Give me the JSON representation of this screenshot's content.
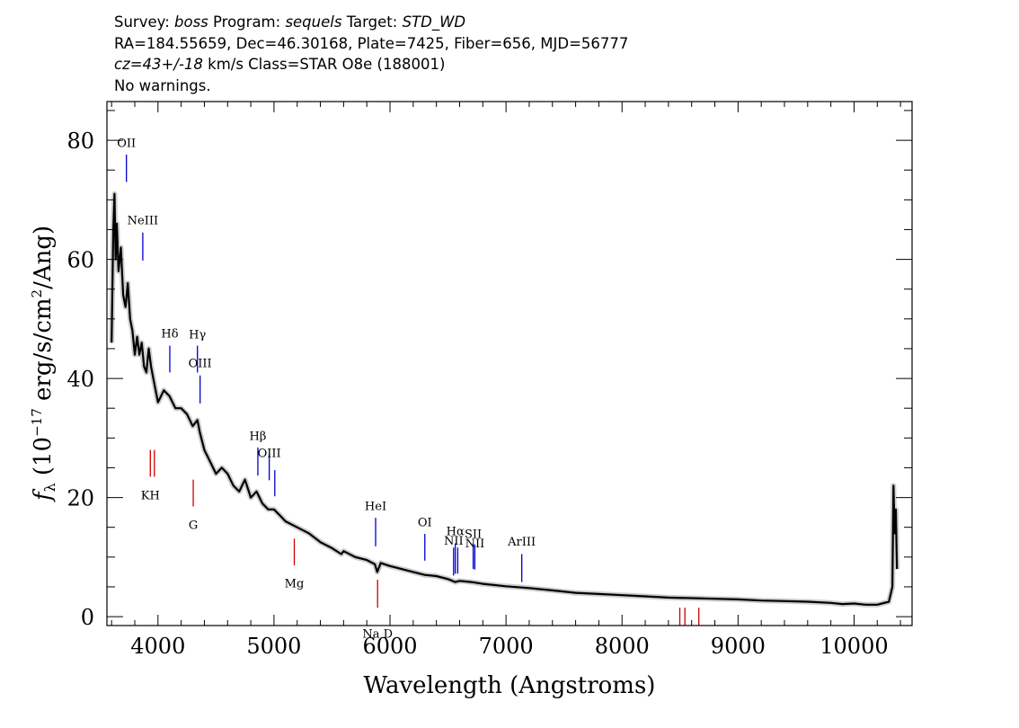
{
  "header": {
    "line1": {
      "survey_label": "Survey: ",
      "survey": "boss",
      "program_label": " Program: ",
      "program": "sequels",
      "target_label": " Target: ",
      "target": "STD_WD"
    },
    "line2": "RA=184.55659, Dec=46.30168, Plate=7425, Fiber=656, MJD=56777",
    "line3": {
      "cz": "cz=43+/-18",
      "rest": " km/s Class=STAR O8e (188001)"
    },
    "line4": "No warnings."
  },
  "chart_data": {
    "type": "line",
    "xlabel": "Wavelength (Angstroms)",
    "ylabel_parts": {
      "f": "f",
      "lambda": "λ",
      "open": " (10",
      "exp": "−17",
      "mid": " erg/s/cm",
      "sq": "2",
      "close": "/Ang)"
    },
    "xlim": [
      3560,
      10500
    ],
    "ylim": [
      -1.5,
      86.5
    ],
    "x_ticks": [
      4000,
      5000,
      6000,
      7000,
      8000,
      9000,
      10000
    ],
    "x_tick_labels": [
      "4000",
      "5000",
      "6000",
      "7000",
      "8000",
      "9000",
      "10000"
    ],
    "y_ticks": [
      0,
      20,
      40,
      60,
      80
    ],
    "y_tick_labels": [
      "0",
      "20",
      "40",
      "60",
      "80"
    ],
    "series": [
      {
        "x": [
          3600,
          3615,
          3625,
          3635,
          3645,
          3660,
          3680,
          3700,
          3720,
          3740,
          3760,
          3780,
          3800,
          3820,
          3840,
          3860,
          3880,
          3900,
          3920,
          3940,
          3960,
          3980,
          4000,
          4050,
          4100,
          4150,
          4200,
          4250,
          4300,
          4340,
          4360,
          4400,
          4450,
          4500,
          4550,
          4600,
          4650,
          4700,
          4750,
          4800,
          4850,
          4900,
          4950,
          5000,
          5050,
          5100,
          5200,
          5300,
          5400,
          5500,
          5580,
          5600,
          5700,
          5800,
          5870,
          5890,
          5920,
          6000,
          6100,
          6200,
          6300,
          6400,
          6500,
          6563,
          6600,
          6700,
          6800,
          7000,
          7200,
          7400,
          7600,
          7800,
          8000,
          8200,
          8400,
          8600,
          8800,
          9000,
          9200,
          9400,
          9600,
          9800,
          9900,
          10000,
          10100,
          10200,
          10300,
          10330,
          10340,
          10350,
          10360,
          10370
        ],
        "y": [
          46,
          65,
          71,
          60,
          66,
          58,
          62,
          54,
          52,
          56,
          50,
          48,
          44,
          47,
          44,
          46,
          42,
          41,
          45,
          42,
          40,
          38,
          36,
          38,
          37,
          35,
          35,
          34,
          32,
          33,
          31,
          28,
          26,
          24,
          25,
          24,
          22,
          21,
          23,
          20,
          21,
          19,
          18,
          18,
          17,
          16,
          15,
          14,
          12.5,
          11.5,
          10.5,
          11,
          10,
          9.5,
          8.8,
          7.5,
          9,
          8.5,
          8,
          7.5,
          7,
          6.8,
          6.3,
          5.8,
          6,
          5.8,
          5.5,
          5.1,
          4.8,
          4.4,
          4,
          3.8,
          3.6,
          3.4,
          3.2,
          3.1,
          3,
          2.9,
          2.7,
          2.6,
          2.5,
          2.3,
          2.1,
          2.2,
          2,
          2,
          2.5,
          5,
          22,
          14,
          18,
          8
        ]
      }
    ],
    "emission_lines": [
      {
        "label": "OII",
        "x": 3728,
        "y0": 73,
        "y1": 77.6,
        "label_y": 78.9
      },
      {
        "label": "NeIII",
        "x": 3869,
        "y0": 59.8,
        "y1": 64.5,
        "label_y": 65.9
      },
      {
        "label": "Hδ",
        "x": 4102,
        "y0": 41,
        "y1": 45.5,
        "label_y": 46.9
      },
      {
        "label": "Hγ",
        "x": 4340,
        "y0": 41,
        "y1": 45.5,
        "label_y": 46.7
      },
      {
        "label": "OIII",
        "x": 4363,
        "y0": 35.8,
        "y1": 40.5,
        "label_y": 41.9
      },
      {
        "label": "Hβ",
        "x": 4861,
        "y0": 23.7,
        "y1": 28.4,
        "label_y": 29.7
      },
      {
        "label": "OIII",
        "x": 4959,
        "y0": 22.9,
        "y1": 27.4,
        "label_y": 26.8
      },
      {
        "label": "",
        "x": 5007,
        "y0": 20.2,
        "y1": 24.6,
        "label_y": 0
      },
      {
        "label": "HeI",
        "x": 5876,
        "y0": 11.8,
        "y1": 16.6,
        "label_y": 17.9
      },
      {
        "label": "OI",
        "x": 6300,
        "y0": 9.4,
        "y1": 13.9,
        "label_y": 15.2
      },
      {
        "label": "NII",
        "x": 6548,
        "y0": 6.9,
        "y1": 11.6,
        "label_y": 12.1
      },
      {
        "label": "Hα",
        "x": 6563,
        "y0": 7.2,
        "y1": 12.3,
        "label_y": 13.7
      },
      {
        "label": "",
        "x": 6584,
        "y0": 7.2,
        "y1": 11.6,
        "label_y": 0
      },
      {
        "label": "SII",
        "x": 6717,
        "y0": 8,
        "y1": 12.3,
        "label_y": 13.2
      },
      {
        "label": "NII",
        "x": 6731,
        "y0": 7.9,
        "y1": 12.1,
        "label_y": 11.6
      },
      {
        "label": "ArIII",
        "x": 7136,
        "y0": 5.8,
        "y1": 10.5,
        "label_y": 11.9
      }
    ],
    "absorption_lines": [
      {
        "label": "KH",
        "x": 3934,
        "y0": 23.5,
        "y1": 28,
        "label_y": 19.7
      },
      {
        "label": "",
        "x": 3969,
        "y0": 23.5,
        "y1": 28,
        "label_y": 0
      },
      {
        "label": "G",
        "x": 4304,
        "y0": 18.5,
        "y1": 23,
        "label_y": 14.7
      },
      {
        "label": "Mg",
        "x": 5175,
        "y0": 8.6,
        "y1": 13.1,
        "label_y": 4.9
      },
      {
        "label": "Na D",
        "x": 5893,
        "y0": 1.5,
        "y1": 6.2,
        "label_y": -3.5
      },
      {
        "label": "",
        "x": 8498,
        "y0": -1.5,
        "y1": 1.5,
        "label_y": 0
      },
      {
        "label": "",
        "x": 8542,
        "y0": -1.5,
        "y1": 1.5,
        "label_y": 0
      },
      {
        "label": "",
        "x": 8662,
        "y0": -1.5,
        "y1": 1.5,
        "label_y": 0
      }
    ],
    "colors": {
      "spectrum": "#000000",
      "error": "#c8c8c8",
      "emission": "#0000cc",
      "absorption": "#cc0000",
      "axes": "#000000"
    }
  }
}
